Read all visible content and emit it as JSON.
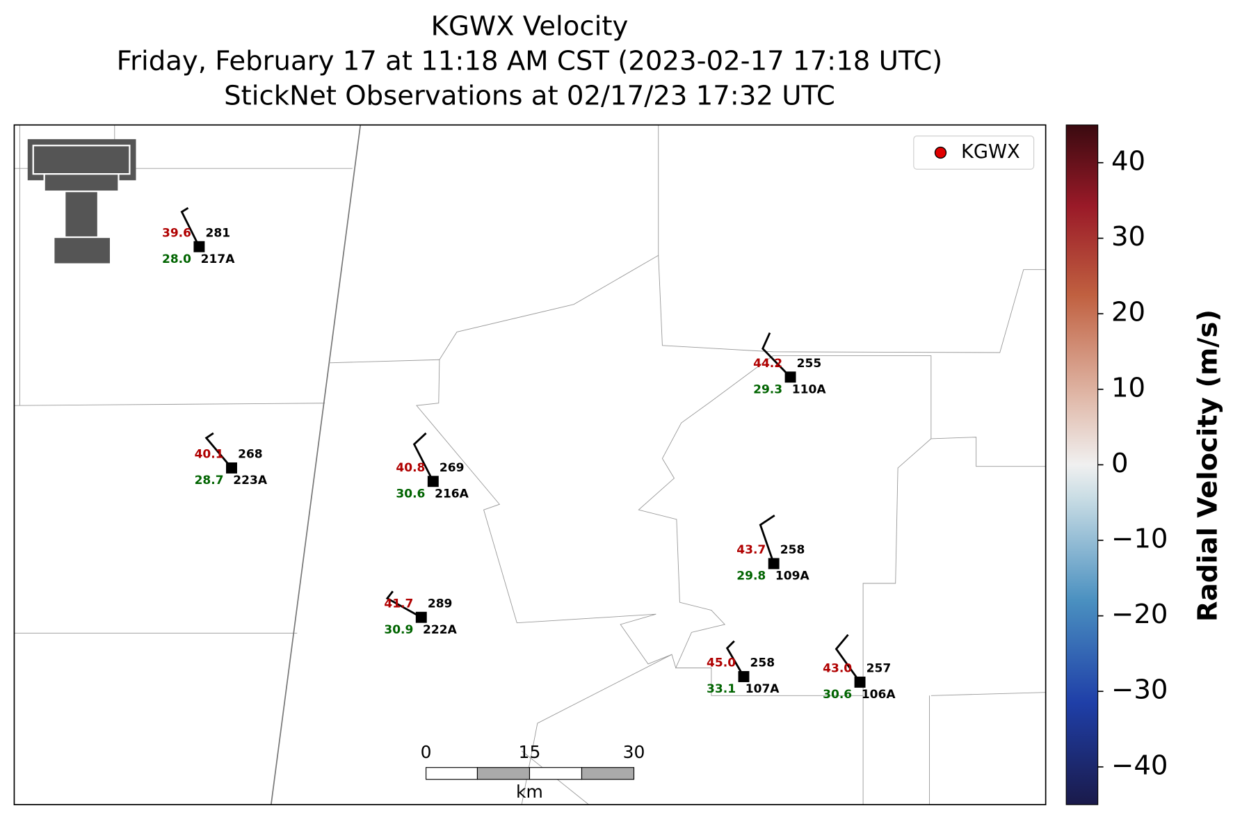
{
  "title_lines": [
    "KGWX Velocity",
    "Friday, February 17 at 11:18 AM CST (2023-02-17 17:18 UTC)",
    "StickNet Observations at 02/17/23 17:32 UTC"
  ],
  "legend": {
    "label": "KGWX",
    "color": "#e00000"
  },
  "stations": [
    {
      "id": "217A",
      "temperature": "39.6",
      "dewpoint": "28.0",
      "direction": "281"
    },
    {
      "id": "223A",
      "temperature": "40.1",
      "dewpoint": "28.7",
      "direction": "268"
    },
    {
      "id": "216A",
      "temperature": "40.8",
      "dewpoint": "30.6",
      "direction": "269"
    },
    {
      "id": "222A",
      "temperature": "41.7",
      "dewpoint": "30.9",
      "direction": "289"
    },
    {
      "id": "110A",
      "temperature": "44.2",
      "dewpoint": "29.3",
      "direction": "255"
    },
    {
      "id": "109A",
      "temperature": "43.7",
      "dewpoint": "29.8",
      "direction": "258"
    },
    {
      "id": "107A",
      "temperature": "45.0",
      "dewpoint": "33.1",
      "direction": "258"
    },
    {
      "id": "106A",
      "temperature": "43.0",
      "dewpoint": "30.6",
      "direction": "257"
    }
  ],
  "scale_bar": {
    "ticks": [
      "0",
      "15",
      "30"
    ],
    "unit": "km"
  },
  "colorbar": {
    "label": "Radial Velocity (m/s)",
    "clim": [
      -45,
      45
    ],
    "ticks": [
      40,
      30,
      20,
      10,
      0,
      {
        "value": -10,
        "label": "−10"
      },
      {
        "value": -20,
        "label": "−20"
      },
      {
        "value": -30,
        "label": "−30"
      },
      {
        "value": -40,
        "label": "−40"
      }
    ]
  }
}
